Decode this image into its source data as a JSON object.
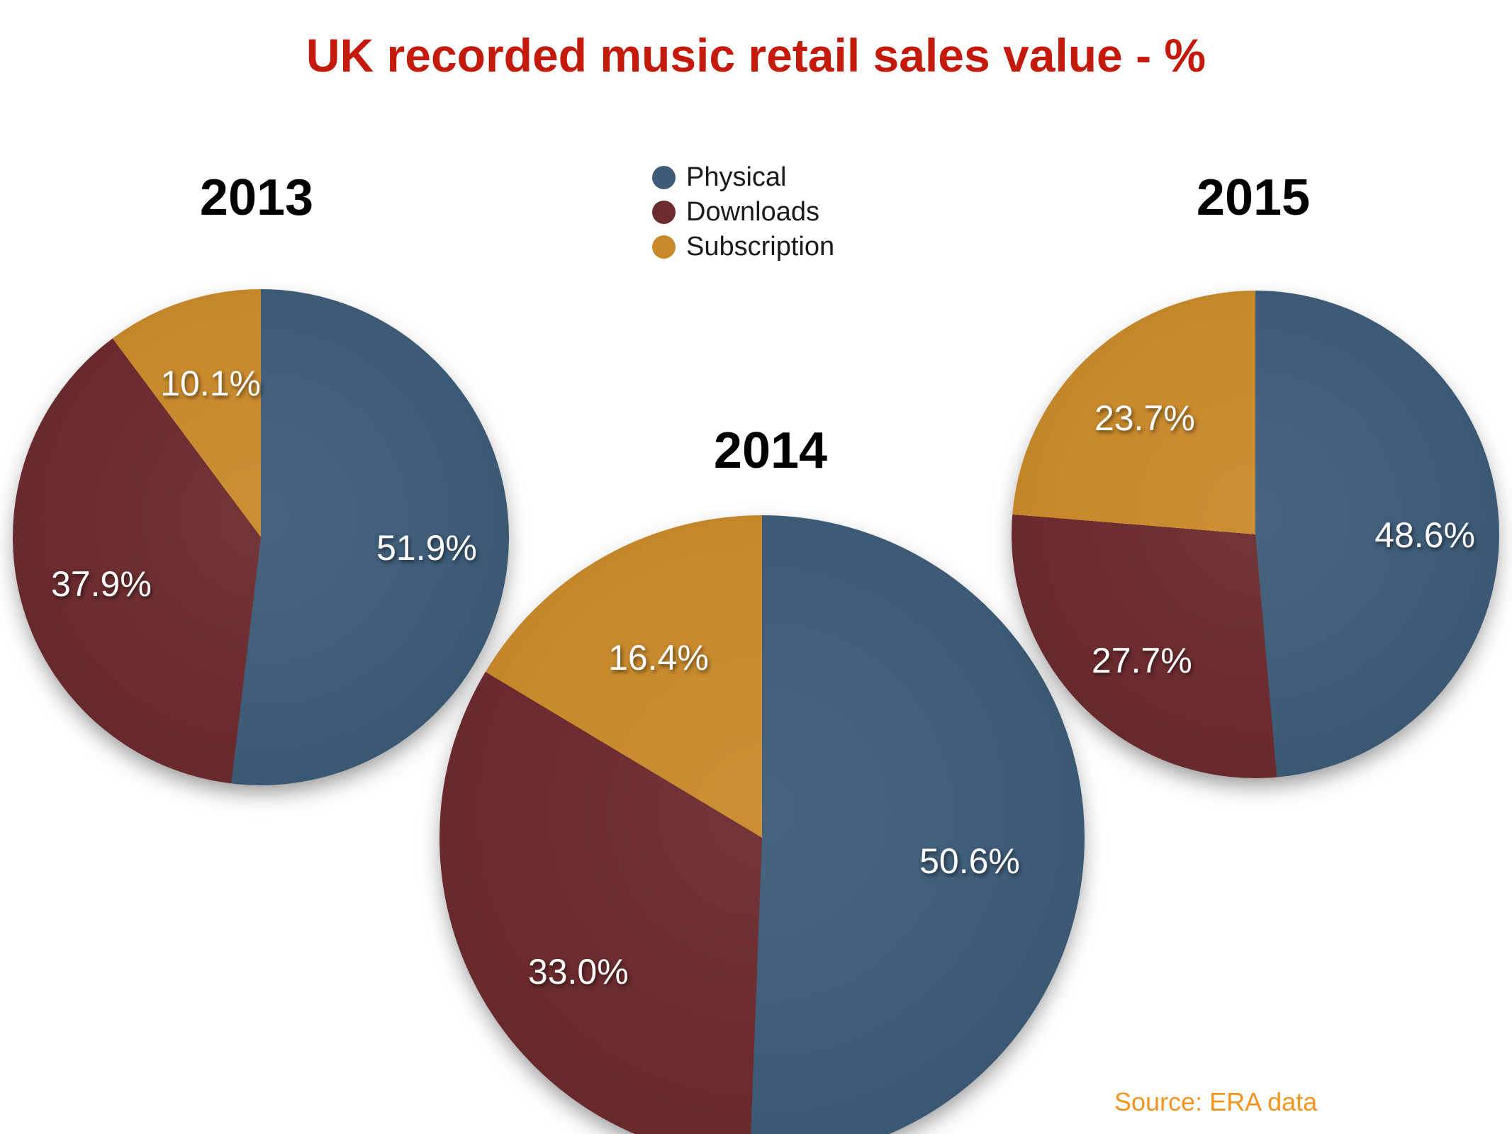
{
  "title": "UK recorded music retail sales value - %",
  "source_note": "Source: ERA data",
  "colors": {
    "Physical": "#3E5C78",
    "Downloads": "#6C2B2E",
    "Subscription": "#C8892B",
    "title_text": "#C41A0C",
    "source_text": "#F7941E",
    "year_text": "#000000",
    "slice_label_text": "#FCFCFC"
  },
  "legend": {
    "position": "top-center",
    "items": [
      {
        "label": "Physical"
      },
      {
        "label": "Downloads"
      },
      {
        "label": "Subscription"
      }
    ]
  },
  "chart_data": [
    {
      "type": "pie",
      "title": "2013",
      "categories": [
        "Physical",
        "Downloads",
        "Subscription"
      ],
      "values": [
        51.9,
        37.9,
        10.1
      ],
      "labels": [
        "51.9%",
        "37.9%",
        "10.1%"
      ],
      "start_angle_deg": 0,
      "direction": "clockwise"
    },
    {
      "type": "pie",
      "title": "2014",
      "categories": [
        "Physical",
        "Downloads",
        "Subscription"
      ],
      "values": [
        50.6,
        33.0,
        16.4
      ],
      "labels": [
        "50.6%",
        "33.0%",
        "16.4%"
      ],
      "start_angle_deg": 0,
      "direction": "clockwise"
    },
    {
      "type": "pie",
      "title": "2015",
      "categories": [
        "Physical",
        "Downloads",
        "Subscription"
      ],
      "values": [
        48.6,
        27.7,
        23.7
      ],
      "labels": [
        "48.6%",
        "27.7%",
        "23.7%"
      ],
      "start_angle_deg": 0,
      "direction": "clockwise"
    }
  ]
}
